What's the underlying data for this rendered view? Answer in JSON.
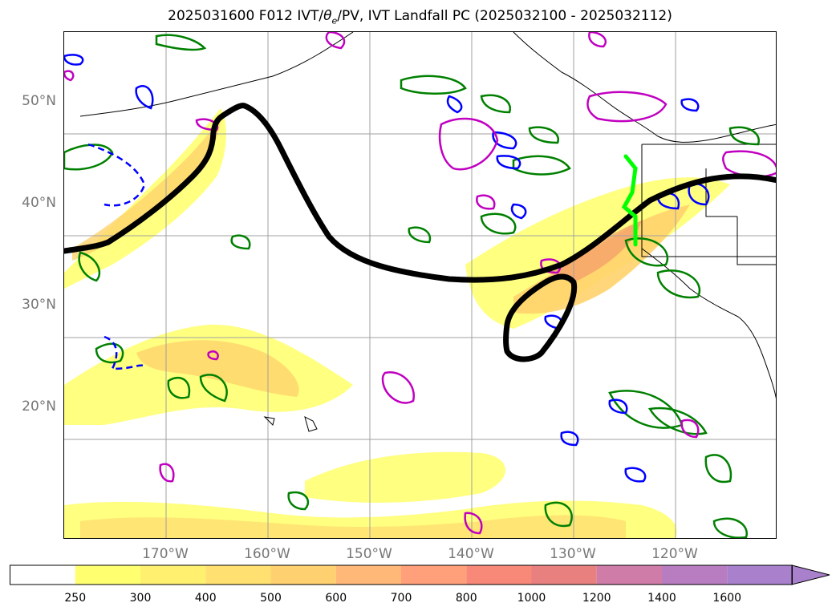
{
  "title": {
    "prefix": "2025031600 F012 IVT/",
    "theta": "θ",
    "theta_sub": "e",
    "suffix": "/PV, IVT Landfall PC (2025032100 - 2025032112)"
  },
  "map": {
    "lat_labels": [
      "50°N",
      "40°N",
      "30°N",
      "20°N"
    ],
    "lon_labels": [
      "170°W",
      "160°W",
      "150°W",
      "140°W",
      "130°W",
      "120°W"
    ],
    "colors": {
      "ivt_fill_low": "#ffff80",
      "ivt_fill_mid": "#ffd36b",
      "ivt_fill_high": "#f59a6a",
      "pv_contour": "#0000ff",
      "theta_contour": "#008000",
      "ivt_pc_contour": "#000000",
      "magenta_contour": "#c000c0",
      "landfall_line": "#00ff00",
      "coast": "#000000",
      "grid": "#a0a0a0"
    }
  },
  "colorbar": {
    "ticks": [
      "250",
      "300",
      "400",
      "500",
      "600",
      "700",
      "800",
      "1000",
      "1200",
      "1400",
      "1600"
    ],
    "colors": [
      "#ffffff",
      "#ffff70",
      "#fff070",
      "#ffe070",
      "#ffd070",
      "#ffb878",
      "#ffa07a",
      "#f88878",
      "#e88080",
      "#d07ca8",
      "#b87cc0",
      "#a880cc"
    ]
  }
}
